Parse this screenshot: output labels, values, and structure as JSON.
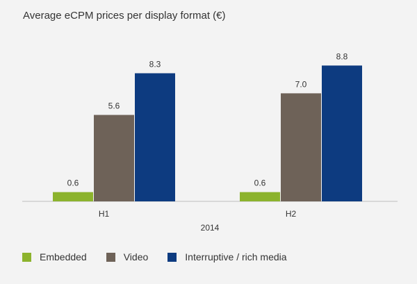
{
  "chart_data": {
    "type": "bar",
    "title": "Average eCPM prices per display format (€)",
    "xlabel": "2014",
    "ylabel": "",
    "categories": [
      "H1",
      "H2"
    ],
    "series": [
      {
        "name": "Embedded",
        "color": "#8cb32d",
        "values": [
          0.6,
          0.6
        ],
        "labels": [
          "0.6",
          "0.6"
        ]
      },
      {
        "name": "Video",
        "color": "#6e6258",
        "values": [
          5.6,
          7.0
        ],
        "labels": [
          "5.6",
          "7.0"
        ]
      },
      {
        "name": "Interruptive / rich media",
        "color": "#0d3b80",
        "values": [
          8.3,
          8.8
        ],
        "labels": [
          "8.3",
          "8.8"
        ]
      }
    ],
    "ylim": [
      0,
      10
    ],
    "grid": false,
    "legend_position": "bottom-left"
  }
}
